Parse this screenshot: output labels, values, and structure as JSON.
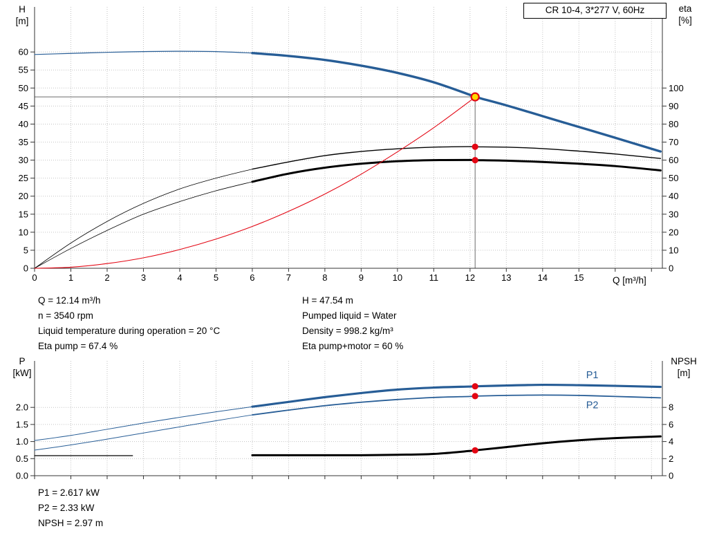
{
  "title_box": "CR 10-4, 3*277 V, 60Hz",
  "colors": {
    "curve_blue": "#275d96",
    "curve_red": "#e30613",
    "curve_black": "#000000",
    "duty_yellow": "#ffd800",
    "grid": "#c3c3c3",
    "guide": "#6a6a6a"
  },
  "chart_data": [
    {
      "id": "head",
      "type": "line",
      "title": "CR 10-4, 3*277 V, 60Hz",
      "x_axis": {
        "label": "Q [m³/h]",
        "min": 0,
        "max": 17.3,
        "ticks": [
          0,
          1,
          2,
          3,
          4,
          5,
          6,
          7,
          8,
          9,
          10,
          11,
          12,
          13,
          14,
          15
        ],
        "minor_ticks": [
          16,
          17
        ],
        "show_labels": true
      },
      "y_left": {
        "label": "H",
        "unit": "[m]",
        "min": 0,
        "max": 72.5,
        "decimals": 0,
        "ticks": [
          0,
          5,
          10,
          15,
          20,
          25,
          30,
          35,
          40,
          45,
          50,
          55,
          60
        ]
      },
      "y_right": {
        "label": "eta",
        "unit": "[%]",
        "min": 0,
        "max": 145,
        "decimals": 0,
        "ticks": [
          0,
          10,
          20,
          30,
          40,
          50,
          60,
          70,
          80,
          90,
          100
        ]
      },
      "series": [
        {
          "name": "pump-curve-low",
          "axis": "left",
          "color": "#275d96",
          "width": 1.2,
          "points": [
            [
              0,
              59.3
            ],
            [
              1,
              59.6
            ],
            [
              2,
              59.9
            ],
            [
              3,
              60.1
            ],
            [
              4,
              60.2
            ],
            [
              5,
              60.1
            ],
            [
              6,
              59.7
            ]
          ]
        },
        {
          "name": "pump-curve",
          "axis": "left",
          "color": "#275d96",
          "width": 3.4,
          "points": [
            [
              6,
              59.7
            ],
            [
              7,
              58.9
            ],
            [
              8,
              57.8
            ],
            [
              9,
              56.2
            ],
            [
              10,
              54.2
            ],
            [
              11,
              51.6
            ],
            [
              12,
              48.1
            ],
            [
              12.14,
              47.54
            ],
            [
              13,
              45.2
            ],
            [
              14,
              42.2
            ],
            [
              15,
              39.2
            ],
            [
              16,
              36.2
            ],
            [
              17.25,
              32.4
            ]
          ]
        },
        {
          "name": "eta-pump-low",
          "axis": "right",
          "color": "#000000",
          "width": 0.8,
          "points": [
            [
              0,
              0
            ],
            [
              1,
              14
            ],
            [
              2,
              26
            ],
            [
              3,
              36
            ],
            [
              4,
              44
            ],
            [
              5,
              50
            ],
            [
              6,
              55
            ]
          ]
        },
        {
          "name": "eta-pump",
          "axis": "right",
          "color": "#000000",
          "width": 1.4,
          "points": [
            [
              6,
              55
            ],
            [
              7,
              59
            ],
            [
              8,
              62.5
            ],
            [
              9,
              64.8
            ],
            [
              10,
              66.3
            ],
            [
              11,
              67.2
            ],
            [
              12,
              67.5
            ],
            [
              12.14,
              67.4
            ],
            [
              13,
              67.2
            ],
            [
              14,
              66.4
            ],
            [
              15,
              65
            ],
            [
              16,
              63.4
            ],
            [
              17.25,
              60.9
            ]
          ]
        },
        {
          "name": "eta-pump-motor-low",
          "axis": "right",
          "color": "#000000",
          "width": 0.8,
          "points": [
            [
              0,
              0
            ],
            [
              1,
              11
            ],
            [
              2,
              21
            ],
            [
              3,
              30
            ],
            [
              4,
              37
            ],
            [
              5,
              43
            ],
            [
              6,
              48
            ]
          ]
        },
        {
          "name": "eta-pump-motor",
          "axis": "right",
          "color": "#000000",
          "width": 3,
          "points": [
            [
              6,
              48
            ],
            [
              7,
              52.5
            ],
            [
              8,
              55.8
            ],
            [
              9,
              58
            ],
            [
              10,
              59.4
            ],
            [
              11,
              60
            ],
            [
              12,
              60.1
            ],
            [
              12.14,
              60
            ],
            [
              13,
              59.7
            ],
            [
              14,
              59
            ],
            [
              15,
              58
            ],
            [
              16,
              56.7
            ],
            [
              17.25,
              54.3
            ]
          ]
        },
        {
          "name": "system-curve",
          "axis": "left",
          "color": "#e30613",
          "width": 1.1,
          "points": [
            [
              0,
              0
            ],
            [
              1,
              0.3
            ],
            [
              2,
              1.3
            ],
            [
              3,
              2.9
            ],
            [
              4,
              5.2
            ],
            [
              5,
              8.1
            ],
            [
              6,
              11.6
            ],
            [
              7,
              15.8
            ],
            [
              8,
              20.6
            ],
            [
              9,
              26.1
            ],
            [
              10,
              32.3
            ],
            [
              11,
              39
            ],
            [
              12,
              46.4
            ],
            [
              12.14,
              47.54
            ]
          ]
        }
      ],
      "guides": [
        {
          "dir": "h",
          "axis": "left",
          "v": 47.54,
          "x1": 0,
          "x2": 12.14
        },
        {
          "dir": "v",
          "axis": "left",
          "x": 12.14,
          "v1": 0,
          "v2": 47.54
        }
      ],
      "markers": [
        {
          "name": "duty-point",
          "x": 12.14,
          "v": 47.54,
          "axis": "left",
          "r": 5.5,
          "fill": "#ffd800",
          "stroke": "#e30613"
        },
        {
          "name": "eta-pump-point",
          "x": 12.14,
          "v": 67.4,
          "axis": "right",
          "r": 4.6,
          "fill": "#e30613"
        },
        {
          "name": "eta-pump-motor-point",
          "x": 12.14,
          "v": 60,
          "axis": "right",
          "r": 4.6,
          "fill": "#e30613"
        }
      ],
      "curve_labels": []
    },
    {
      "id": "power",
      "type": "line",
      "title": "",
      "x_axis": {
        "label": "",
        "min": 0,
        "max": 17.3,
        "ticks": [
          0,
          1,
          2,
          3,
          4,
          5,
          6,
          7,
          8,
          9,
          10,
          11,
          12,
          13,
          14,
          15
        ],
        "minor_ticks": [
          16,
          17
        ],
        "show_labels": false
      },
      "y_left": {
        "label": "P",
        "unit": "[kW]",
        "min": 0,
        "max": 3.36,
        "decimals": 1,
        "ticks": [
          0,
          0.5,
          1,
          1.5,
          2
        ]
      },
      "y_right": {
        "label": "NPSH",
        "unit": "[m]",
        "min": 0,
        "max": 13.44,
        "decimals": 0,
        "ticks": [
          0,
          2,
          4,
          6,
          8
        ]
      },
      "series": [
        {
          "name": "p1-curve-low",
          "axis": "left",
          "color": "#275d96",
          "width": 1,
          "points": [
            [
              0,
              1.03
            ],
            [
              1,
              1.18
            ],
            [
              2,
              1.36
            ],
            [
              3,
              1.54
            ],
            [
              4,
              1.71
            ],
            [
              5,
              1.87
            ],
            [
              6,
              2.02
            ]
          ]
        },
        {
          "name": "p1-curve",
          "axis": "left",
          "color": "#275d96",
          "width": 3.2,
          "points": [
            [
              6,
              2.02
            ],
            [
              7,
              2.16
            ],
            [
              8,
              2.3
            ],
            [
              9,
              2.42
            ],
            [
              10,
              2.52
            ],
            [
              11,
              2.58
            ],
            [
              12,
              2.61
            ],
            [
              12.14,
              2.617
            ],
            [
              13,
              2.64
            ],
            [
              14,
              2.66
            ],
            [
              15,
              2.65
            ],
            [
              16,
              2.63
            ],
            [
              17.25,
              2.6
            ]
          ]
        },
        {
          "name": "p2-curve-low",
          "axis": "left",
          "color": "#275d96",
          "width": 1,
          "points": [
            [
              0,
              0.75
            ],
            [
              1,
              0.9
            ],
            [
              2,
              1.07
            ],
            [
              3,
              1.25
            ],
            [
              4,
              1.43
            ],
            [
              5,
              1.61
            ],
            [
              6,
              1.78
            ]
          ]
        },
        {
          "name": "p2-curve",
          "axis": "left",
          "color": "#275d96",
          "width": 1.8,
          "points": [
            [
              6,
              1.78
            ],
            [
              7,
              1.92
            ],
            [
              8,
              2.05
            ],
            [
              9,
              2.15
            ],
            [
              10,
              2.23
            ],
            [
              11,
              2.29
            ],
            [
              12,
              2.32
            ],
            [
              12.14,
              2.33
            ],
            [
              13,
              2.35
            ],
            [
              14,
              2.36
            ],
            [
              15,
              2.35
            ],
            [
              16,
              2.32
            ],
            [
              17.25,
              2.28
            ]
          ]
        },
        {
          "name": "npsh-curve-low",
          "axis": "right",
          "color": "#000000",
          "width": 1.3,
          "points": [
            [
              0,
              2.35
            ],
            [
              2.7,
              2.35
            ]
          ]
        },
        {
          "name": "npsh-curve",
          "axis": "right",
          "color": "#000000",
          "width": 3,
          "points": [
            [
              6,
              2.4
            ],
            [
              7,
              2.4
            ],
            [
              8,
              2.4
            ],
            [
              9,
              2.4
            ],
            [
              10,
              2.45
            ],
            [
              11,
              2.55
            ],
            [
              12,
              2.9
            ],
            [
              12.14,
              2.97
            ],
            [
              13,
              3.35
            ],
            [
              14,
              3.8
            ],
            [
              15,
              4.15
            ],
            [
              16,
              4.4
            ],
            [
              17.25,
              4.6
            ]
          ]
        }
      ],
      "guides": [],
      "markers": [
        {
          "name": "p1-point",
          "x": 12.14,
          "v": 2.617,
          "axis": "left",
          "r": 4.6,
          "fill": "#e30613"
        },
        {
          "name": "p2-point",
          "x": 12.14,
          "v": 2.33,
          "axis": "left",
          "r": 4.6,
          "fill": "#e30613"
        },
        {
          "name": "npsh-point",
          "x": 12.14,
          "v": 2.97,
          "axis": "right",
          "r": 4.6,
          "fill": "#e30613"
        }
      ],
      "curve_labels": [
        {
          "text": "P1",
          "x": 15.2,
          "v": 2.85,
          "axis": "left",
          "color": "#275d96"
        },
        {
          "text": "P2",
          "x": 15.2,
          "v": 1.97,
          "axis": "left",
          "color": "#275d96"
        }
      ]
    }
  ],
  "info_top": {
    "left": [
      "Q = 12.14 m³/h",
      "n = 3540 rpm",
      "Liquid temperature during operation = 20 °C",
      "Eta pump = 67.4 %"
    ],
    "right": [
      "H = 47.54 m",
      "Pumped liquid = Water",
      "Density = 998.2 kg/m³",
      "Eta pump+motor = 60 %"
    ]
  },
  "info_bottom": {
    "lines": [
      "P1 = 2.617 kW",
      "P2 = 2.33 kW",
      "NPSH = 2.97 m"
    ]
  }
}
